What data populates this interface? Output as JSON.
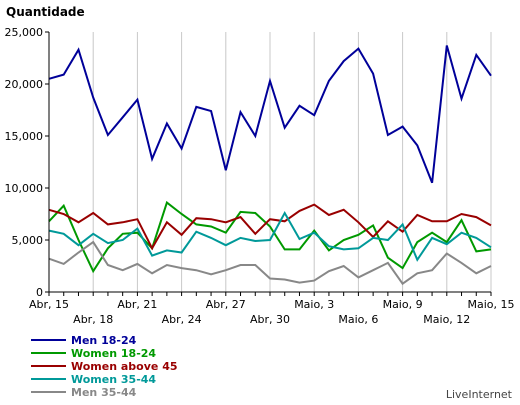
{
  "chart_data": {
    "type": "line",
    "ylabel": "Quantidade",
    "credit": "LiveInternet",
    "ylim": [
      0,
      25000
    ],
    "yticks": [
      0,
      5000,
      10000,
      15000,
      20000,
      25000
    ],
    "ytick_labels": [
      "0",
      "5,000",
      "10,000",
      "15,000",
      "20,000",
      "25,000"
    ],
    "grid": {
      "vertical": true,
      "horizontal": false
    },
    "x_categories": [
      "Abr, 15",
      "Abr, 16",
      "Abr, 17",
      "Abr, 18",
      "Abr, 19",
      "Abr, 20",
      "Abr, 21",
      "Abr, 22",
      "Abr, 23",
      "Abr, 24",
      "Abr, 25",
      "Abr, 26",
      "Abr, 27",
      "Abr, 28",
      "Abr, 29",
      "Abr, 30",
      "Maio, 1",
      "Maio, 2",
      "Maio, 3",
      "Maio, 4",
      "Maio, 5",
      "Maio, 6",
      "Maio, 7",
      "Maio, 8",
      "Maio, 9",
      "Maio, 10",
      "Maio, 11",
      "Maio, 12",
      "Maio, 13",
      "Maio, 14",
      "Maio, 15"
    ],
    "x_tick_labels": [
      {
        "index": 0,
        "text": "Abr, 15",
        "row": 0
      },
      {
        "index": 3,
        "text": "Abr, 18",
        "row": 1
      },
      {
        "index": 6,
        "text": "Abr, 21",
        "row": 0
      },
      {
        "index": 9,
        "text": "Abr, 24",
        "row": 1
      },
      {
        "index": 12,
        "text": "Abr, 27",
        "row": 0
      },
      {
        "index": 15,
        "text": "Abr, 30",
        "row": 1
      },
      {
        "index": 18,
        "text": "Maio, 3",
        "row": 0
      },
      {
        "index": 21,
        "text": "Maio, 6",
        "row": 1
      },
      {
        "index": 24,
        "text": "Maio, 9",
        "row": 0
      },
      {
        "index": 27,
        "text": "Maio, 12",
        "row": 1
      },
      {
        "index": 30,
        "text": "Maio, 15",
        "row": 0
      }
    ],
    "series": [
      {
        "name": "Men 18-24",
        "color": "#000099",
        "values": [
          20500,
          20900,
          23300,
          18700,
          15100,
          16800,
          18500,
          12800,
          16200,
          13800,
          17800,
          17400,
          11700,
          17300,
          15000,
          20300,
          15800,
          17900,
          17000,
          20300,
          22200,
          23400,
          21000,
          15100,
          15900,
          14100,
          10500,
          23700,
          18600,
          22800,
          20800
        ]
      },
      {
        "name": "Women 18-24",
        "color": "#009900",
        "values": [
          6800,
          8300,
          5000,
          2000,
          4200,
          5600,
          5700,
          4200,
          8600,
          7500,
          6500,
          6300,
          5700,
          7700,
          7600,
          6300,
          4100,
          4100,
          5900,
          4000,
          5000,
          5500,
          6400,
          3300,
          2300,
          4800,
          5700,
          4800,
          6900,
          3900,
          4100
        ]
      },
      {
        "name": "Women above 45",
        "color": "#990000",
        "values": [
          7900,
          7500,
          6700,
          7600,
          6500,
          6700,
          7000,
          4200,
          6700,
          5500,
          7100,
          7000,
          6700,
          7200,
          5600,
          7000,
          6800,
          7800,
          8400,
          7400,
          7900,
          6700,
          5300,
          6800,
          5800,
          7400,
          6800,
          6800,
          7500,
          7200,
          6400
        ]
      },
      {
        "name": "Women 35-44",
        "color": "#009999",
        "values": [
          5900,
          5600,
          4500,
          5600,
          4700,
          5000,
          6100,
          3500,
          4000,
          3800,
          5800,
          5200,
          4500,
          5200,
          4900,
          5000,
          7600,
          5100,
          5700,
          4400,
          4100,
          4200,
          5200,
          5000,
          6500,
          3100,
          5200,
          4600,
          5700,
          5200,
          4300
        ]
      },
      {
        "name": "Men 35-44",
        "color": "#888888",
        "values": [
          3200,
          2700,
          3800,
          4800,
          2600,
          2100,
          2700,
          1800,
          2600,
          2300,
          2100,
          1700,
          2100,
          2600,
          2600,
          1300,
          1200,
          900,
          1100,
          2000,
          2500,
          1400,
          2100,
          2800,
          800,
          1800,
          2100,
          3700,
          2800,
          1800,
          2500
        ]
      }
    ]
  }
}
